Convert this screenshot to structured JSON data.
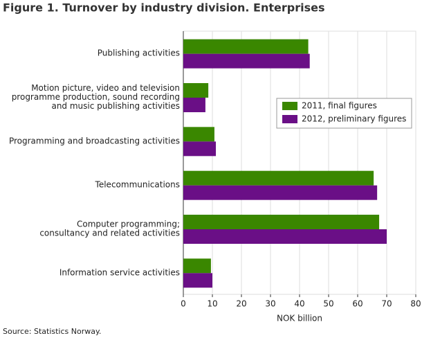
{
  "chart_data": {
    "type": "barh",
    "title": "Figure 1. Turnover by industry division. Enterprises",
    "x_label": "NOK billion",
    "source": "Source: Statistics Norway.",
    "categories": [
      "Publishing activities",
      "Motion picture, video and television\nprogramme production, sound recording\nand music publishing activities",
      "Programming and broadcasting activities",
      "Telecommunications",
      "Computer programming;\nconsultancy and related activities",
      "Information service activities"
    ],
    "series": [
      {
        "name": "2011, final figures",
        "color": "#3a8700",
        "values": [
          43,
          8.6,
          10.7,
          65.5,
          67.4,
          9.5
        ]
      },
      {
        "name": "2012, preliminary figures",
        "color": "#6a0f86",
        "values": [
          43.5,
          7.6,
          11.2,
          66.7,
          70,
          10
        ]
      }
    ],
    "xlim": [
      0,
      80
    ],
    "xticks": [
      0,
      10,
      20,
      30,
      40,
      50,
      60,
      70,
      80
    ],
    "grid": true,
    "legend_position": "right"
  }
}
